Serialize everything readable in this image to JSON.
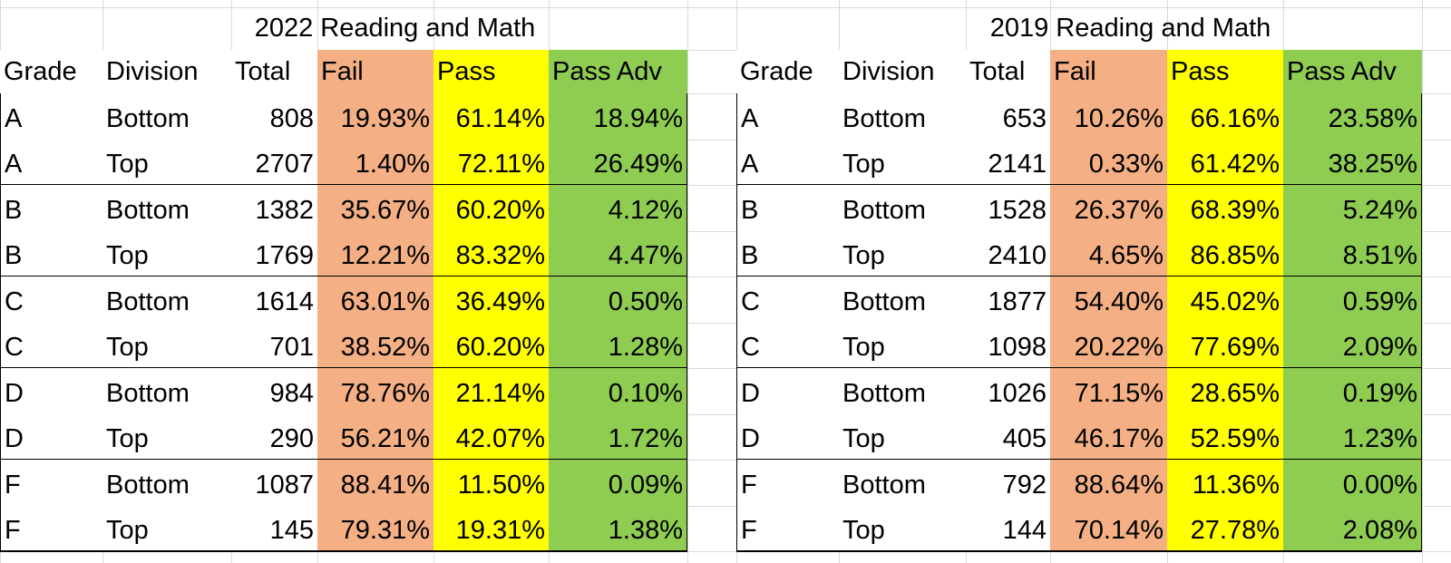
{
  "tables": [
    {
      "title": "2022 Reading and Math",
      "headers": [
        "Grade",
        "Division",
        "Total",
        "Fail",
        "Pass",
        "Pass Adv"
      ],
      "rows": [
        [
          "A",
          "Bottom",
          "808",
          "19.93%",
          "61.14%",
          "18.94%"
        ],
        [
          "A",
          "Top",
          "2707",
          "1.40%",
          "72.11%",
          "26.49%"
        ],
        [
          "B",
          "Bottom",
          "1382",
          "35.67%",
          "60.20%",
          "4.12%"
        ],
        [
          "B",
          "Top",
          "1769",
          "12.21%",
          "83.32%",
          "4.47%"
        ],
        [
          "C",
          "Bottom",
          "1614",
          "63.01%",
          "36.49%",
          "0.50%"
        ],
        [
          "C",
          "Top",
          "701",
          "38.52%",
          "60.20%",
          "1.28%"
        ],
        [
          "D",
          "Bottom",
          "984",
          "78.76%",
          "21.14%",
          "0.10%"
        ],
        [
          "D",
          "Top",
          "290",
          "56.21%",
          "42.07%",
          "1.72%"
        ],
        [
          "F",
          "Bottom",
          "1087",
          "88.41%",
          "11.50%",
          "0.09%"
        ],
        [
          "F",
          "Top",
          "145",
          "79.31%",
          "19.31%",
          "1.38%"
        ]
      ]
    },
    {
      "title": "2019 Reading and Math",
      "headers": [
        "Grade",
        "Division",
        "Total",
        "Fail",
        "Pass",
        "Pass Adv"
      ],
      "rows": [
        [
          "A",
          "Bottom",
          "653",
          "10.26%",
          "66.16%",
          "23.58%"
        ],
        [
          "A",
          "Top",
          "2141",
          "0.33%",
          "61.42%",
          "38.25%"
        ],
        [
          "B",
          "Bottom",
          "1528",
          "26.37%",
          "68.39%",
          "5.24%"
        ],
        [
          "B",
          "Top",
          "2410",
          "4.65%",
          "86.85%",
          "8.51%"
        ],
        [
          "C",
          "Bottom",
          "1877",
          "54.40%",
          "45.02%",
          "0.59%"
        ],
        [
          "C",
          "Top",
          "1098",
          "20.22%",
          "77.69%",
          "2.09%"
        ],
        [
          "D",
          "Bottom",
          "1026",
          "71.15%",
          "28.65%",
          "0.19%"
        ],
        [
          "D",
          "Top",
          "405",
          "46.17%",
          "52.59%",
          "1.23%"
        ],
        [
          "F",
          "Bottom",
          "792",
          "88.64%",
          "11.36%",
          "0.00%"
        ],
        [
          "F",
          "Top",
          "144",
          "70.14%",
          "27.78%",
          "2.08%"
        ]
      ]
    }
  ]
}
